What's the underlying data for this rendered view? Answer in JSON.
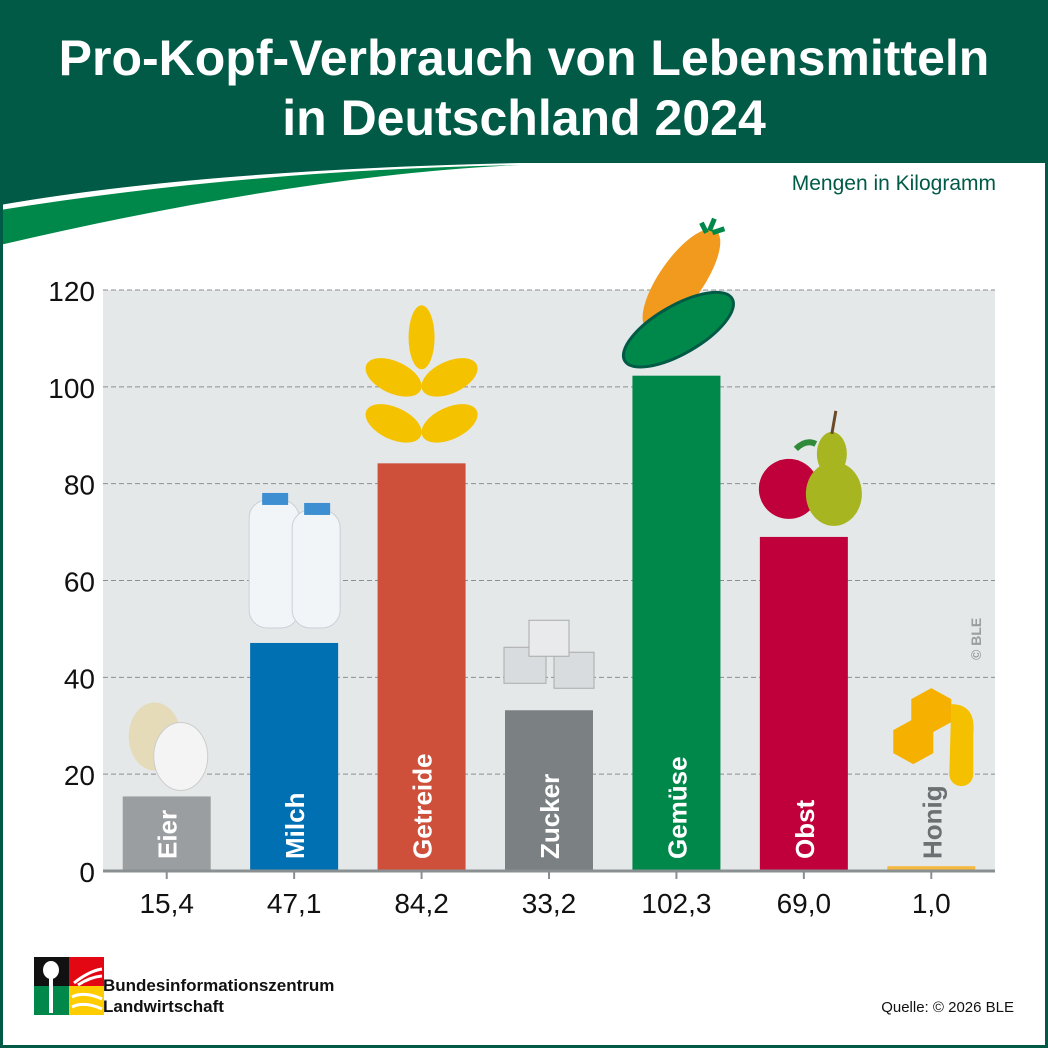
{
  "title_line1": "Pro-Kopf-Verbrauch von Lebensmitteln",
  "title_line2": "in Deutschland 2024",
  "unit_label": "Mengen in Kilogramm",
  "copyright_mark": "© BLE",
  "organization": {
    "line1": "Bundesinformationszentrum",
    "line2": "Landwirtschaft"
  },
  "source": "Quelle: © 2026 BLE",
  "colors": {
    "header": "#005a46",
    "accent_green": "#00884a",
    "plot_bg": "#e5e8e9"
  },
  "chart_data": {
    "type": "bar",
    "title": "Pro-Kopf-Verbrauch von Lebensmitteln in Deutschland 2024",
    "ylabel": "Mengen in Kilogramm",
    "ylim": [
      0,
      120
    ],
    "yticks": [
      0,
      20,
      40,
      60,
      80,
      100,
      120
    ],
    "grid": true,
    "categories": [
      "Eier",
      "Milch",
      "Getreide",
      "Zucker",
      "Gemüse",
      "Obst",
      "Honig"
    ],
    "values": [
      15.4,
      47.1,
      84.2,
      33.2,
      102.3,
      69.0,
      1.0
    ],
    "value_labels": [
      "15,4",
      "47,1",
      "84,2",
      "33,2",
      "102,3",
      "69,0",
      "1,0"
    ],
    "bar_colors": [
      "#9b9ea0",
      "#0070b3",
      "#cf503a",
      "#7b8082",
      "#00884a",
      "#c0003a",
      "#f5b942"
    ],
    "icons": [
      "eggs-icon",
      "milk-bottles-icon",
      "wheat-icon",
      "sugar-cubes-icon",
      "carrot-cucumber-icon",
      "apple-pear-icon",
      "honeycomb-icon"
    ]
  }
}
